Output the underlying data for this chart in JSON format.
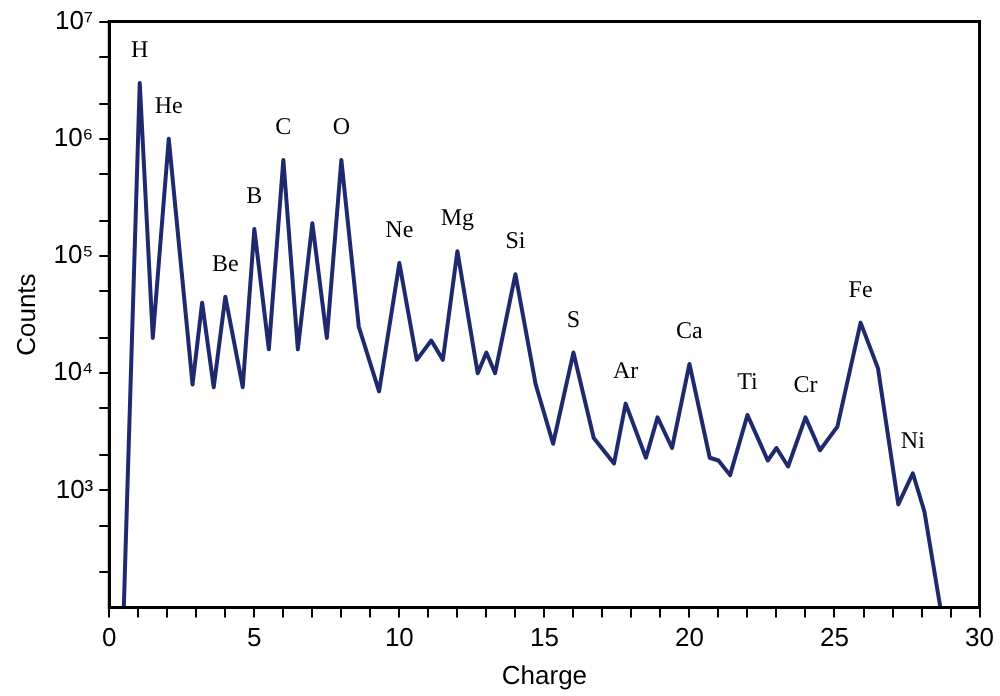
{
  "chart_data": {
    "type": "line",
    "xlabel": "Charge",
    "ylabel": "Counts",
    "log": "y",
    "grid": false,
    "legend": false,
    "marker": "none",
    "line_style": "solid",
    "xlim": [
      0,
      30
    ],
    "xticks": [
      0,
      {
        "value": 1,
        "label": null
      },
      {
        "value": 2,
        "label": null
      },
      {
        "value": 3,
        "label": null
      },
      {
        "value": 4,
        "label": null
      },
      5,
      {
        "value": 6,
        "label": null
      },
      {
        "value": 7,
        "label": null
      },
      {
        "value": 8,
        "label": null
      },
      {
        "value": 9,
        "label": null
      },
      10,
      {
        "value": 11,
        "label": null
      },
      {
        "value": 12,
        "label": null
      },
      {
        "value": 13,
        "label": null
      },
      {
        "value": 14,
        "label": null
      },
      15,
      {
        "value": 16,
        "label": null
      },
      {
        "value": 17,
        "label": null
      },
      {
        "value": 18,
        "label": null
      },
      {
        "value": 19,
        "label": null
      },
      20,
      {
        "value": 21,
        "label": null
      },
      {
        "value": 22,
        "label": null
      },
      {
        "value": 23,
        "label": null
      },
      {
        "value": 24,
        "label": null
      },
      25,
      {
        "value": 26,
        "label": null
      },
      {
        "value": 27,
        "label": null
      },
      {
        "value": 28,
        "label": null
      },
      {
        "value": 29,
        "label": null
      },
      30
    ],
    "ylim": [
      100,
      10000000
    ],
    "yticks": [
      {
        "value": 1000,
        "label": "10³"
      },
      {
        "value": 10000,
        "label": "10⁴"
      },
      {
        "value": 100000,
        "label": "10⁵"
      },
      {
        "value": 1000000,
        "label": "10⁶"
      },
      {
        "value": 10000000,
        "label": "10⁷"
      },
      {
        "value": 200,
        "label": null
      },
      {
        "value": 500,
        "label": null
      },
      {
        "value": 2000,
        "label": null
      },
      {
        "value": 5000,
        "label": null
      },
      {
        "value": 20000,
        "label": null
      },
      {
        "value": 50000,
        "label": null
      },
      {
        "value": 200000,
        "label": null
      },
      {
        "value": 500000,
        "label": null
      },
      {
        "value": 2000000,
        "label": null
      },
      {
        "value": 5000000,
        "label": null
      }
    ],
    "series": [
      {
        "color": "#1f2a6e",
        "x": [
          0.5,
          1.05,
          1.5,
          2.05,
          2.87,
          3.2,
          3.6,
          4.0,
          4.6,
          5.0,
          5.5,
          6.0,
          6.5,
          7.0,
          7.5,
          8.0,
          8.6,
          9.3,
          10.0,
          10.6,
          11.1,
          11.5,
          12.0,
          12.7,
          13.0,
          13.3,
          14.0,
          14.7,
          15.3,
          16.0,
          16.7,
          17.4,
          17.8,
          18.5,
          18.9,
          19.4,
          20.0,
          20.7,
          21.0,
          21.4,
          22.0,
          22.7,
          23.0,
          23.4,
          24.0,
          24.5,
          25.1,
          25.9,
          26.5,
          27.2,
          27.7,
          28.1,
          28.65
        ],
        "values": [
          100,
          3000000,
          20000,
          1000000,
          8000,
          40000,
          7600,
          45000,
          7600,
          170000,
          16000,
          660000,
          16000,
          190000,
          20000,
          660000,
          25000,
          7000,
          87000,
          13000,
          19000,
          13000,
          110000,
          10000,
          15000,
          10000,
          70000,
          8000,
          2500,
          15000,
          2800,
          1700,
          5500,
          1900,
          4200,
          2300,
          12000,
          1900,
          1800,
          1350,
          4400,
          1800,
          2300,
          1600,
          4200,
          2200,
          3500,
          27000,
          11000,
          760,
          1400,
          660,
          100
        ]
      }
    ],
    "annotations": [
      {
        "text": "H",
        "x": 1.05,
        "y": 3000000
      },
      {
        "text": "He",
        "x": 2.05,
        "y": 1000000
      },
      {
        "text": "Be",
        "x": 4.0,
        "y": 45000
      },
      {
        "text": "B",
        "x": 5.0,
        "y": 170000
      },
      {
        "text": "C",
        "x": 6.0,
        "y": 660000
      },
      {
        "text": "O",
        "x": 8.0,
        "y": 660000
      },
      {
        "text": "Ne",
        "x": 10.0,
        "y": 87000
      },
      {
        "text": "Mg",
        "x": 12.0,
        "y": 110000
      },
      {
        "text": "Si",
        "x": 14.0,
        "y": 70000
      },
      {
        "text": "S",
        "x": 16.0,
        "y": 15000
      },
      {
        "text": "Ar",
        "x": 17.8,
        "y": 5500
      },
      {
        "text": "Ca",
        "x": 20.0,
        "y": 12000
      },
      {
        "text": "Ti",
        "x": 22.0,
        "y": 4400
      },
      {
        "text": "Cr",
        "x": 24.0,
        "y": 4200
      },
      {
        "text": "Fe",
        "x": 25.9,
        "y": 27000
      },
      {
        "text": "Ni",
        "x": 27.7,
        "y": 1400
      }
    ]
  }
}
